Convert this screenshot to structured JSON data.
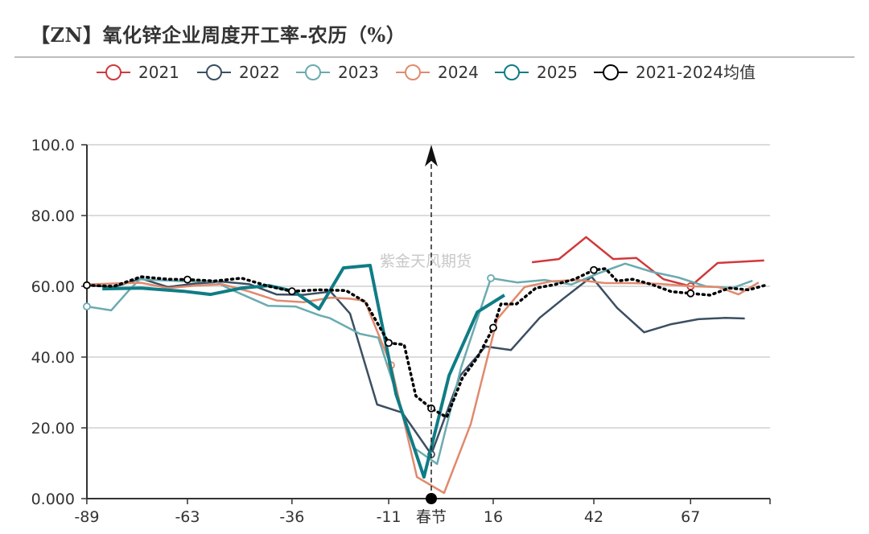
{
  "title": "【ZN】氧化锌企业周度开工率-农历（%）",
  "watermark": "紫金天风期货",
  "chart_data": {
    "type": "line",
    "title": "【ZN】氧化锌企业周度开工率-农历（%）",
    "xlabel": "",
    "ylabel": "",
    "xlim": [
      -89,
      87.5
    ],
    "ylim": [
      0,
      100
    ],
    "x_ticks": [
      {
        "value": -89,
        "label": "-89"
      },
      {
        "value": -63,
        "label": "-63"
      },
      {
        "value": -36,
        "label": "-36"
      },
      {
        "value": -11,
        "label": "-11"
      },
      {
        "value": 0,
        "label": "春节"
      },
      {
        "value": 16,
        "label": "16"
      },
      {
        "value": 42,
        "label": "42"
      },
      {
        "value": 67,
        "label": "67"
      }
    ],
    "y_ticks": [
      {
        "value": 0,
        "label": "0.000"
      },
      {
        "value": 20,
        "label": "20.00"
      },
      {
        "value": 40,
        "label": "40.00"
      },
      {
        "value": 60,
        "label": "60.00"
      },
      {
        "value": 80,
        "label": "80.00"
      },
      {
        "value": 100,
        "label": "100.0"
      }
    ],
    "grid": true,
    "legend": "top",
    "marker_line": {
      "x": 0,
      "label": "春节"
    },
    "series": [
      {
        "name": "2021",
        "color": "#d0393b",
        "width": 2.5,
        "dotted": false,
        "points": [
          [
            26,
            66.8
          ],
          [
            33,
            67.7
          ],
          [
            40,
            73.9
          ],
          [
            47,
            67.7
          ],
          [
            53,
            68.0
          ],
          [
            60,
            62.0
          ],
          [
            67,
            60.0
          ],
          [
            74,
            66.6
          ],
          [
            86,
            67.3
          ]
        ],
        "markers": [
          67
        ]
      },
      {
        "name": "2022",
        "color": "#3b4f62",
        "width": 2.5,
        "dotted": false,
        "points": [
          [
            -89,
            60.3
          ],
          [
            -82,
            59.8
          ],
          [
            -75,
            62.2
          ],
          [
            -68,
            59.8
          ],
          [
            -61,
            60.8
          ],
          [
            -54,
            61.3
          ],
          [
            -47,
            60.6
          ],
          [
            -40,
            57.7
          ],
          [
            -33,
            57.6
          ],
          [
            -26,
            58.5
          ],
          [
            -21,
            52.3
          ],
          [
            -14,
            26.6
          ],
          [
            -7.5,
            24.3
          ],
          [
            0,
            12.5
          ],
          [
            7.5,
            34.8
          ],
          [
            14,
            43.0
          ],
          [
            20.6,
            42.0
          ],
          [
            28,
            51.1
          ],
          [
            34,
            56.4
          ],
          [
            41.4,
            62.7
          ],
          [
            48,
            53.9
          ],
          [
            55,
            47.0
          ],
          [
            62,
            49.3
          ],
          [
            69,
            50.7
          ],
          [
            76,
            51.1
          ],
          [
            81,
            50.9
          ]
        ],
        "markers": [
          0
        ]
      },
      {
        "name": "2023",
        "color": "#6aabb0",
        "width": 2.5,
        "dotted": false,
        "points": [
          [
            -89,
            54.3
          ],
          [
            -82.7,
            53.2
          ],
          [
            -78,
            59.0
          ],
          [
            -75.3,
            62.0
          ],
          [
            -64.2,
            61.4
          ],
          [
            -55.9,
            61.4
          ],
          [
            -52.6,
            59.5
          ],
          [
            -42.2,
            54.5
          ],
          [
            -35.1,
            54.3
          ],
          [
            -28.9,
            51.8
          ],
          [
            -26.2,
            51.0
          ],
          [
            -18.5,
            46.6
          ],
          [
            -13.7,
            45.5
          ],
          [
            -4.4,
            14.3
          ],
          [
            1.5,
            9.8
          ],
          [
            7.7,
            37.0
          ],
          [
            15.4,
            62.3
          ],
          [
            22.2,
            61.1
          ],
          [
            29.3,
            61.8
          ],
          [
            36.2,
            60.5
          ],
          [
            43,
            63.6
          ],
          [
            50.1,
            66.4
          ],
          [
            57,
            64.1
          ],
          [
            63.8,
            62.5
          ],
          [
            70.9,
            60.0
          ],
          [
            77.8,
            59.5
          ],
          [
            83,
            61.6
          ]
        ],
        "markers": [
          -89,
          15.4
        ]
      },
      {
        "name": "2024",
        "color": "#e08a6d",
        "width": 2.5,
        "dotted": false,
        "points": [
          [
            -89,
            60.5
          ],
          [
            -82,
            60.8
          ],
          [
            -75,
            61.0
          ],
          [
            -68,
            59.5
          ],
          [
            -61,
            60.2
          ],
          [
            -54,
            60.6
          ],
          [
            -47,
            58.5
          ],
          [
            -40,
            56.0
          ],
          [
            -33,
            55.5
          ],
          [
            -26,
            56.8
          ],
          [
            -21,
            56.5
          ],
          [
            -17.2,
            55.9
          ],
          [
            -10.4,
            37.7
          ],
          [
            -3.7,
            6.1
          ],
          [
            3.3,
            1.6
          ],
          [
            10.2,
            21.1
          ],
          [
            17,
            50.7
          ],
          [
            24.1,
            59.8
          ],
          [
            31,
            61.4
          ],
          [
            37.8,
            61.8
          ],
          [
            44.9,
            60.9
          ],
          [
            51.8,
            60.9
          ],
          [
            58.6,
            60.7
          ],
          [
            67.4,
            60.0
          ],
          [
            74.2,
            59.8
          ],
          [
            79.4,
            57.7
          ],
          [
            84.6,
            61.1
          ]
        ],
        "markers": [
          -11
        ]
      },
      {
        "name": "2025",
        "color": "#0f7c85",
        "width": 4,
        "dotted": false,
        "points": [
          [
            -85,
            59.3
          ],
          [
            -75,
            59.5
          ],
          [
            -64,
            58.6
          ],
          [
            -57,
            57.7
          ],
          [
            -49,
            59.5
          ],
          [
            -42,
            60.2
          ],
          [
            -35.5,
            58.6
          ],
          [
            -29,
            53.6
          ],
          [
            -22.7,
            65.2
          ],
          [
            -15.8,
            65.9
          ],
          [
            -9.1,
            29.5
          ],
          [
            -1.9,
            6.1
          ],
          [
            4.6,
            34.8
          ],
          [
            11.9,
            52.7
          ],
          [
            18.9,
            57.5
          ]
        ],
        "markers": []
      },
      {
        "name": "2021-2024均值",
        "color": "#000000",
        "width": 3,
        "dotted": true,
        "points": [
          [
            -89,
            60.3
          ],
          [
            -82,
            60.0
          ],
          [
            -75,
            62.7
          ],
          [
            -68,
            62.0
          ],
          [
            -63,
            61.9
          ],
          [
            -56,
            61.5
          ],
          [
            -49,
            62.3
          ],
          [
            -42,
            60.0
          ],
          [
            -36,
            58.6
          ],
          [
            -29,
            59.0
          ],
          [
            -22,
            58.8
          ],
          [
            -17,
            55.5
          ],
          [
            -11,
            44.0
          ],
          [
            -7,
            43.5
          ],
          [
            -4,
            29.0
          ],
          [
            0,
            25.5
          ],
          [
            4,
            23.0
          ],
          [
            8,
            34.0
          ],
          [
            12,
            40.0
          ],
          [
            16,
            48.3
          ],
          [
            18,
            55.0
          ],
          [
            22,
            55.0
          ],
          [
            27,
            59.5
          ],
          [
            32,
            60.5
          ],
          [
            37,
            62.0
          ],
          [
            42,
            64.6
          ],
          [
            45,
            65.0
          ],
          [
            48,
            61.5
          ],
          [
            52,
            62.0
          ],
          [
            57,
            60.5
          ],
          [
            62,
            58.5
          ],
          [
            67,
            58.0
          ],
          [
            72,
            57.5
          ],
          [
            77,
            59.5
          ],
          [
            82,
            59.0
          ],
          [
            87,
            60.5
          ]
        ],
        "markers": [
          -89,
          -63,
          -36,
          -11,
          0,
          16,
          42,
          67
        ]
      }
    ]
  }
}
